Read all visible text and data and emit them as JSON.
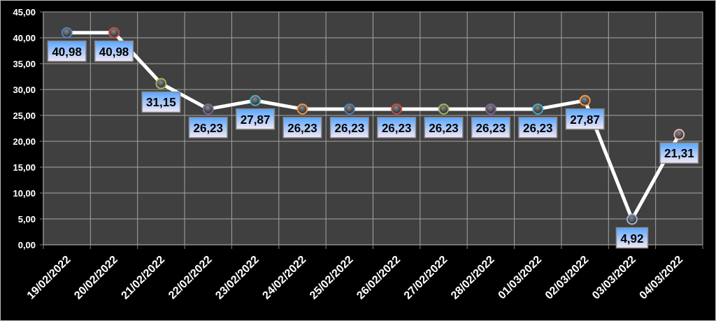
{
  "chart_data": {
    "type": "line",
    "categories": [
      "19/02/2022",
      "20/02/2022",
      "21/02/2022",
      "22/02/2022",
      "23/02/2022",
      "24/02/2022",
      "25/02/2022",
      "26/02/2022",
      "27/02/2022",
      "28/02/2022",
      "01/03/2022",
      "02/03/2022",
      "03/03/2022",
      "04/03/2022"
    ],
    "values": [
      40.98,
      40.98,
      31.15,
      26.23,
      27.87,
      26.23,
      26.23,
      26.23,
      26.23,
      26.23,
      26.23,
      27.87,
      4.92,
      21.31
    ],
    "value_labels": [
      "40,98",
      "40,98",
      "31,15",
      "26,23",
      "27,87",
      "26,23",
      "26,23",
      "26,23",
      "26,23",
      "26,23",
      "26,23",
      "27,87",
      "4,92",
      "21,31"
    ],
    "color": "#ffffff",
    "colors": [
      "#4f81bd",
      "#c0504d",
      "#9bbb59",
      "#8064a2",
      "#4bacc6",
      "#f79646",
      "#4f81bd",
      "#c0504d",
      "#9bbb59",
      "#8064a2",
      "#4bacc6",
      "#f79646",
      "#95b3d7",
      "#e6b9b8"
    ],
    "ylim": [
      0,
      45
    ],
    "yticks": [
      {
        "value": 0,
        "label": "0,00"
      },
      {
        "value": 5,
        "label": "5,00"
      },
      {
        "value": 10,
        "label": "10,00"
      },
      {
        "value": 15,
        "label": "15,00"
      },
      {
        "value": 20,
        "label": "20,00"
      },
      {
        "value": 25,
        "label": "25,00"
      },
      {
        "value": 30,
        "label": "30,00"
      },
      {
        "value": 35,
        "label": "35,00"
      },
      {
        "value": 40,
        "label": "40,00"
      },
      {
        "value": 45,
        "label": "45,00"
      }
    ],
    "grid": true,
    "marker": "circle",
    "line_style": "solid"
  }
}
